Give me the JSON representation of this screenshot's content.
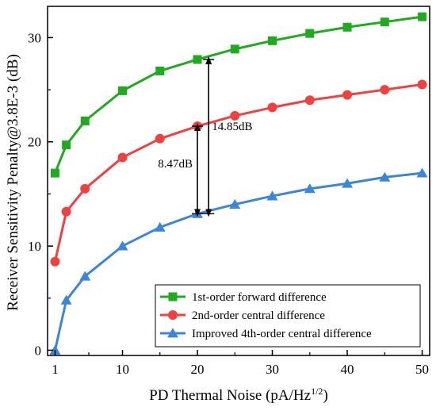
{
  "chart_data": {
    "type": "line",
    "xlabel": "PD Thermal Noise (pA/Hz",
    "xlabel_sup": "1/2",
    "xlabel_tail": ")",
    "ylabel": "Receiver Sensitivity Penalty@3.8E-3 (dB)",
    "xlim": [
      0,
      51
    ],
    "ylim": [
      -0.5,
      33
    ],
    "xticks": [
      1,
      10,
      20,
      30,
      40,
      50
    ],
    "yticks": [
      0,
      10,
      20,
      30
    ],
    "grid": false,
    "legend_position": "bottom-right",
    "x": [
      1,
      2.5,
      5,
      10,
      15,
      20,
      25,
      30,
      35,
      40,
      45,
      50
    ],
    "series": [
      {
        "name": "1st-order forward difference",
        "color": "#1faa1f",
        "marker": "square",
        "values": [
          17.0,
          19.7,
          22.0,
          24.9,
          26.8,
          27.9,
          28.9,
          29.7,
          30.4,
          31.0,
          31.5,
          32.0
        ]
      },
      {
        "name": "2nd-order central difference",
        "color": "#f04040",
        "marker": "circle",
        "values": [
          8.5,
          13.3,
          15.5,
          18.5,
          20.3,
          21.5,
          22.5,
          23.3,
          24.0,
          24.5,
          25.0,
          25.5
        ]
      },
      {
        "name": "Improved 4th-order central difference",
        "color": "#3b86d8",
        "marker": "triangle",
        "values": [
          0.0,
          4.8,
          7.1,
          10.0,
          11.8,
          13.1,
          14.0,
          14.8,
          15.5,
          16.0,
          16.6,
          17.0
        ]
      }
    ],
    "annotations": [
      {
        "label": "8.47dB",
        "x": 20,
        "y_top": 21.5,
        "y_bottom": 13.1
      },
      {
        "label": "14.85dB",
        "x": 21.5,
        "y_top": 27.9,
        "y_bottom": 13.1
      }
    ]
  }
}
